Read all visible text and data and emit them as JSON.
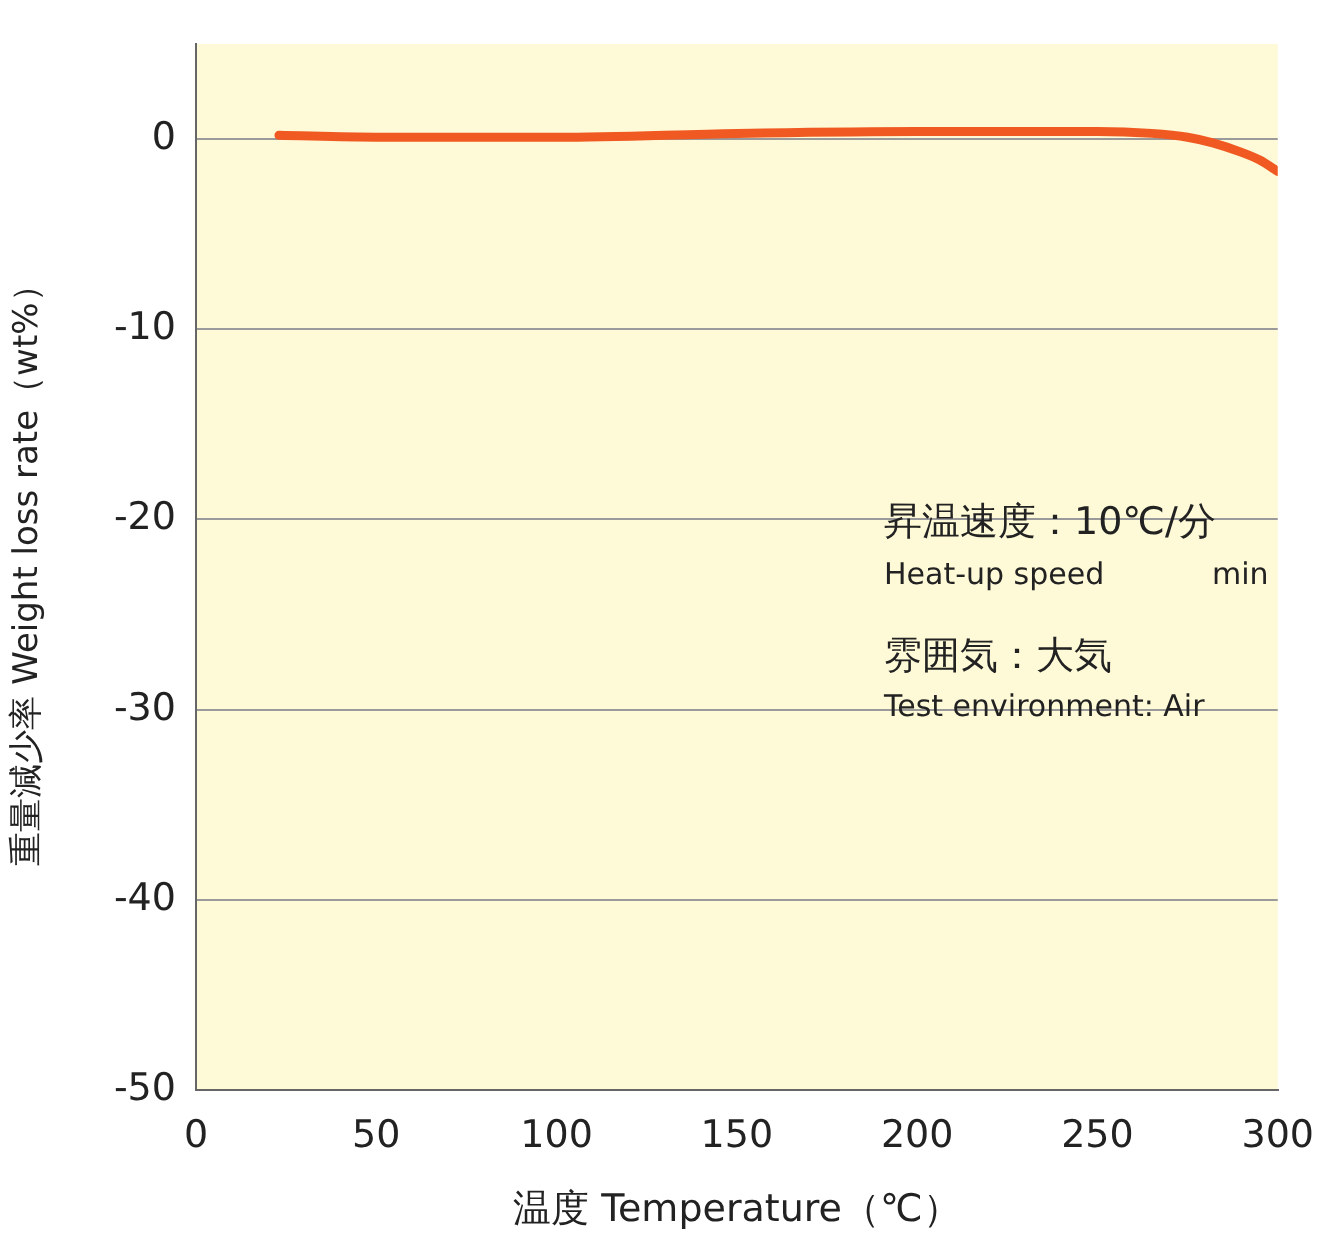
{
  "chart_data": {
    "type": "line",
    "xlabel": "温度 Temperature（℃）",
    "ylabel": "重量減少率 Weight loss rate（wt%）",
    "annotations": [
      "昇温速度：10℃/分",
      "Heat-up speed",
      "min",
      "雰囲気：大気",
      "Test environment: Air"
    ],
    "x": [
      23,
      50,
      100,
      150,
      200,
      250,
      265,
      275,
      282,
      290,
      295,
      300
    ],
    "series": [
      {
        "color": "#f05a22",
        "values": [
          0.2,
          0.1,
          0.1,
          0.3,
          0.4,
          0.4,
          0.3,
          0.1,
          -0.2,
          -0.7,
          -1.1,
          -1.7
        ]
      }
    ],
    "xlim": [
      0,
      300
    ],
    "xticks": [
      0,
      50,
      100,
      150,
      200,
      250,
      300
    ],
    "ylim": [
      -50,
      5
    ],
    "yticks": [
      -50,
      -40,
      -30,
      -20,
      -10,
      0
    ],
    "grid": "y",
    "legend": false,
    "marker": "none",
    "line_style": "solid"
  }
}
